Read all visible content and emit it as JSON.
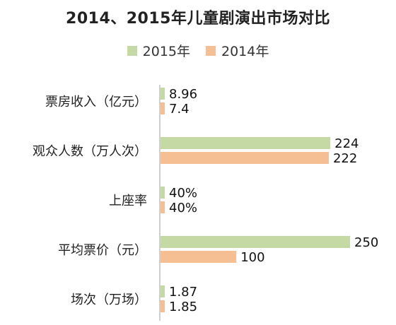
{
  "chart_data": {
    "type": "bar",
    "orientation": "horizontal",
    "title": "2014、2015年儿童剧演出市场对比",
    "categories": [
      "票房收入（亿元）",
      "观众人数（万人次）",
      "上座率",
      "平均票价（元）",
      "场次（万场）"
    ],
    "series": [
      {
        "name": "2015年",
        "color": "#c5d9a4",
        "values": [
          8.96,
          224,
          40,
          250,
          1.87
        ],
        "labels": [
          "8.96",
          "224",
          "40%",
          "250",
          "1.87"
        ]
      },
      {
        "name": "2014年",
        "color": "#f5be93",
        "values": [
          7.4,
          222,
          40,
          100,
          1.85
        ],
        "labels": [
          "7.4",
          "222",
          "40%",
          "100",
          "1.85"
        ]
      }
    ],
    "xlim": [
      0,
      250
    ],
    "legend_position": "top-center",
    "grid": false,
    "axis_color": "#bfbfbf",
    "note": "Bars drawn proportionally per category as in original (small-unit metrics rendered as short bars)"
  }
}
